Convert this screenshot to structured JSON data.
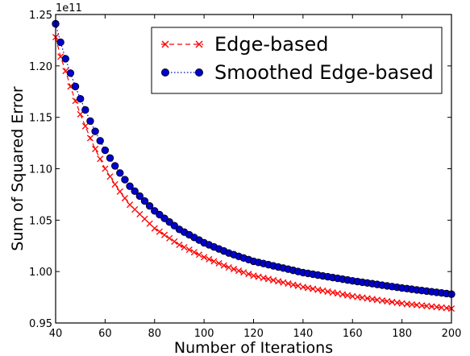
{
  "chart_data": {
    "type": "line",
    "xlabel": "Number of Iterations",
    "ylabel": "Sum of Squared Error",
    "y_offset_label": "1e11",
    "xlim": [
      40,
      200
    ],
    "ylim": [
      0.95,
      1.25
    ],
    "xticks": [
      "40",
      "60",
      "80",
      "100",
      "120",
      "140",
      "160",
      "180",
      "200"
    ],
    "yticks": [
      "0.95",
      "1.00",
      "1.05",
      "1.10",
      "1.15",
      "1.20",
      "1.25"
    ],
    "grid": false,
    "legend_position": "top-right",
    "series": [
      {
        "name": "Edge-based",
        "color": "#ff0000",
        "marker": "x",
        "linestyle": "dashed",
        "x": [
          40,
          42,
          44,
          46,
          48,
          50,
          55,
          60,
          65,
          70,
          80,
          90,
          100,
          110,
          120,
          140,
          160,
          180,
          200
        ],
        "y": [
          1.228,
          1.209,
          1.195,
          1.18,
          1.166,
          1.153,
          1.124,
          1.1,
          1.081,
          1.065,
          1.042,
          1.026,
          1.014,
          1.004,
          0.996,
          0.985,
          0.976,
          0.969,
          0.964
        ]
      },
      {
        "name": "Smoothed Edge-based",
        "color": "#0000cc",
        "marker": "o",
        "linestyle": "dotted",
        "x": [
          40,
          42,
          44,
          46,
          48,
          50,
          55,
          60,
          65,
          70,
          80,
          90,
          100,
          110,
          120,
          140,
          160,
          180,
          200
        ],
        "y": [
          1.241,
          1.223,
          1.207,
          1.193,
          1.18,
          1.168,
          1.141,
          1.118,
          1.099,
          1.083,
          1.059,
          1.041,
          1.028,
          1.018,
          1.01,
          0.999,
          0.991,
          0.984,
          0.978
        ]
      }
    ]
  }
}
